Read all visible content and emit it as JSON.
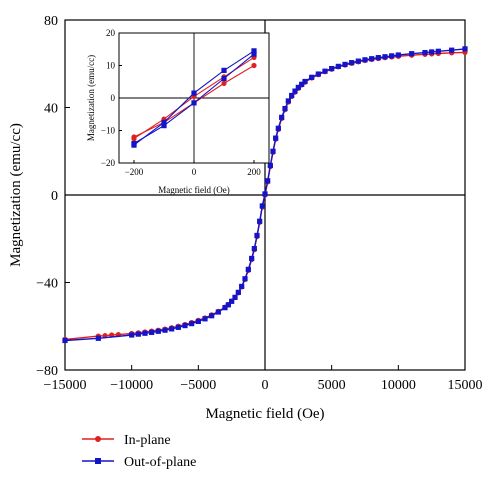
{
  "chart_data": [
    {
      "type": "line",
      "xlabel": "Magnetic field (Oe)",
      "ylabel": "Magnetization (emu/cc)",
      "xlim": [
        -15000,
        15000
      ],
      "ylim": [
        -80,
        80
      ],
      "xticks": [
        -15000,
        -10000,
        -5000,
        0,
        5000,
        10000,
        15000
      ],
      "yticks": [
        -80,
        -40,
        0,
        40,
        80
      ],
      "legend": "bottom-left",
      "grid": false,
      "series": [
        {
          "name": "In-plane",
          "color": "#e02020",
          "marker": "circle",
          "x": [
            -15000,
            -12500,
            -12000,
            -11500,
            -11000,
            -10000,
            -9500,
            -9000,
            -8500,
            -8000,
            -7500,
            -7000,
            -6500,
            -6000,
            -5500,
            -5000,
            -4500,
            -4000,
            -3500,
            -3000,
            -2750,
            -2500,
            -2250,
            -2000,
            -1750,
            -1500,
            -1250,
            -1000,
            -800,
            -600,
            -400,
            -200,
            0,
            200,
            400,
            600,
            800,
            1000,
            1250,
            1500,
            1750,
            2000,
            2250,
            2500,
            2750,
            3000,
            3500,
            4000,
            4500,
            5000,
            5500,
            6000,
            6500,
            7000,
            7500,
            8000,
            8500,
            9000,
            9500,
            10000,
            11000,
            12000,
            12500,
            13000,
            14000,
            15000
          ],
          "y": [
            -66,
            -64.5,
            -64.3,
            -64,
            -63.8,
            -63.3,
            -63,
            -62.6,
            -62.2,
            -61.8,
            -61.3,
            -60.7,
            -60,
            -59.2,
            -58.3,
            -57.3,
            -56.2,
            -54.8,
            -53.2,
            -51.3,
            -50.1,
            -48.5,
            -46.8,
            -44.7,
            -42,
            -38.6,
            -34.5,
            -29.5,
            -25,
            -19,
            -12.5,
            -5.5,
            0,
            6,
            13,
            19.5,
            25.5,
            30,
            35,
            39,
            42.5,
            45,
            47,
            48.8,
            50.3,
            51.6,
            53.5,
            55,
            56.4,
            57.5,
            58.6,
            59.4,
            60.2,
            60.9,
            61.5,
            62,
            62.4,
            62.8,
            63.1,
            63.4,
            63.9,
            64.3,
            64.5,
            64.7,
            65,
            65.2
          ]
        },
        {
          "name": "Out-of-plane",
          "color": "#1414c8",
          "marker": "square",
          "x": [
            -15000,
            -12500,
            -10000,
            -9500,
            -9000,
            -8500,
            -8000,
            -7500,
            -7000,
            -6500,
            -6000,
            -5500,
            -5000,
            -4500,
            -4000,
            -3500,
            -3000,
            -2750,
            -2500,
            -2250,
            -2000,
            -1750,
            -1500,
            -1250,
            -1000,
            -800,
            -600,
            -400,
            -200,
            0,
            200,
            400,
            600,
            800,
            1000,
            1250,
            1500,
            1750,
            2000,
            2250,
            2500,
            2750,
            3000,
            3500,
            4000,
            4500,
            5000,
            5500,
            6000,
            6500,
            7000,
            7500,
            8000,
            8500,
            9000,
            9500,
            10000,
            11000,
            12000,
            12500,
            13000,
            14000,
            15000
          ],
          "y": [
            -66.5,
            -65.5,
            -64,
            -63.6,
            -63.2,
            -62.8,
            -62.3,
            -61.8,
            -61.2,
            -60.5,
            -59.7,
            -58.8,
            -57.8,
            -56.6,
            -55.2,
            -53.5,
            -51.5,
            -50.2,
            -48.6,
            -46.8,
            -44.5,
            -41.8,
            -38.3,
            -34,
            -29,
            -24.5,
            -18.5,
            -12,
            -5,
            0.5,
            6.5,
            13.5,
            20,
            26,
            30.5,
            35.5,
            39.5,
            43,
            45.5,
            47.5,
            49.2,
            50.6,
            51.9,
            53.8,
            55.3,
            56.6,
            57.8,
            58.8,
            59.7,
            60.5,
            61.2,
            61.8,
            62.3,
            62.8,
            63.2,
            63.6,
            64,
            64.6,
            65.1,
            65.4,
            65.7,
            66.2,
            66.8
          ]
        }
      ]
    },
    {
      "type": "line",
      "role": "inset",
      "xlabel": "Magnetic field (Oe)",
      "ylabel": "Magnetization (emu/cc)",
      "xlim": [
        -250,
        250
      ],
      "ylim": [
        -20,
        20
      ],
      "xticks": [
        -200,
        0,
        200
      ],
      "yticks": [
        -20,
        -10,
        0,
        10,
        20
      ],
      "grid": false,
      "series": [
        {
          "name": "In-plane",
          "color": "#e02020",
          "marker": "circle",
          "x": [
            -200,
            -100,
            0,
            100,
            200
          ],
          "y": [
            -12,
            -7.5,
            -1.5,
            4.5,
            10
          ]
        },
        {
          "name": "In-plane",
          "color": "#e02020",
          "marker": "circle",
          "x": [
            -200,
            -100,
            0,
            100,
            200
          ],
          "y": [
            -12.5,
            -6.5,
            0.5,
            6.5,
            12.5
          ]
        },
        {
          "name": "Out-of-plane",
          "color": "#1414c8",
          "marker": "square",
          "x": [
            -200,
            -100,
            0,
            100,
            200
          ],
          "y": [
            -14,
            -8.5,
            -1.5,
            6,
            13.5
          ]
        },
        {
          "name": "Out-of-plane",
          "color": "#1414c8",
          "marker": "square",
          "x": [
            -200,
            -100,
            0,
            100,
            200
          ],
          "y": [
            -14.5,
            -7.5,
            1.5,
            8.5,
            14.5
          ]
        }
      ]
    }
  ]
}
